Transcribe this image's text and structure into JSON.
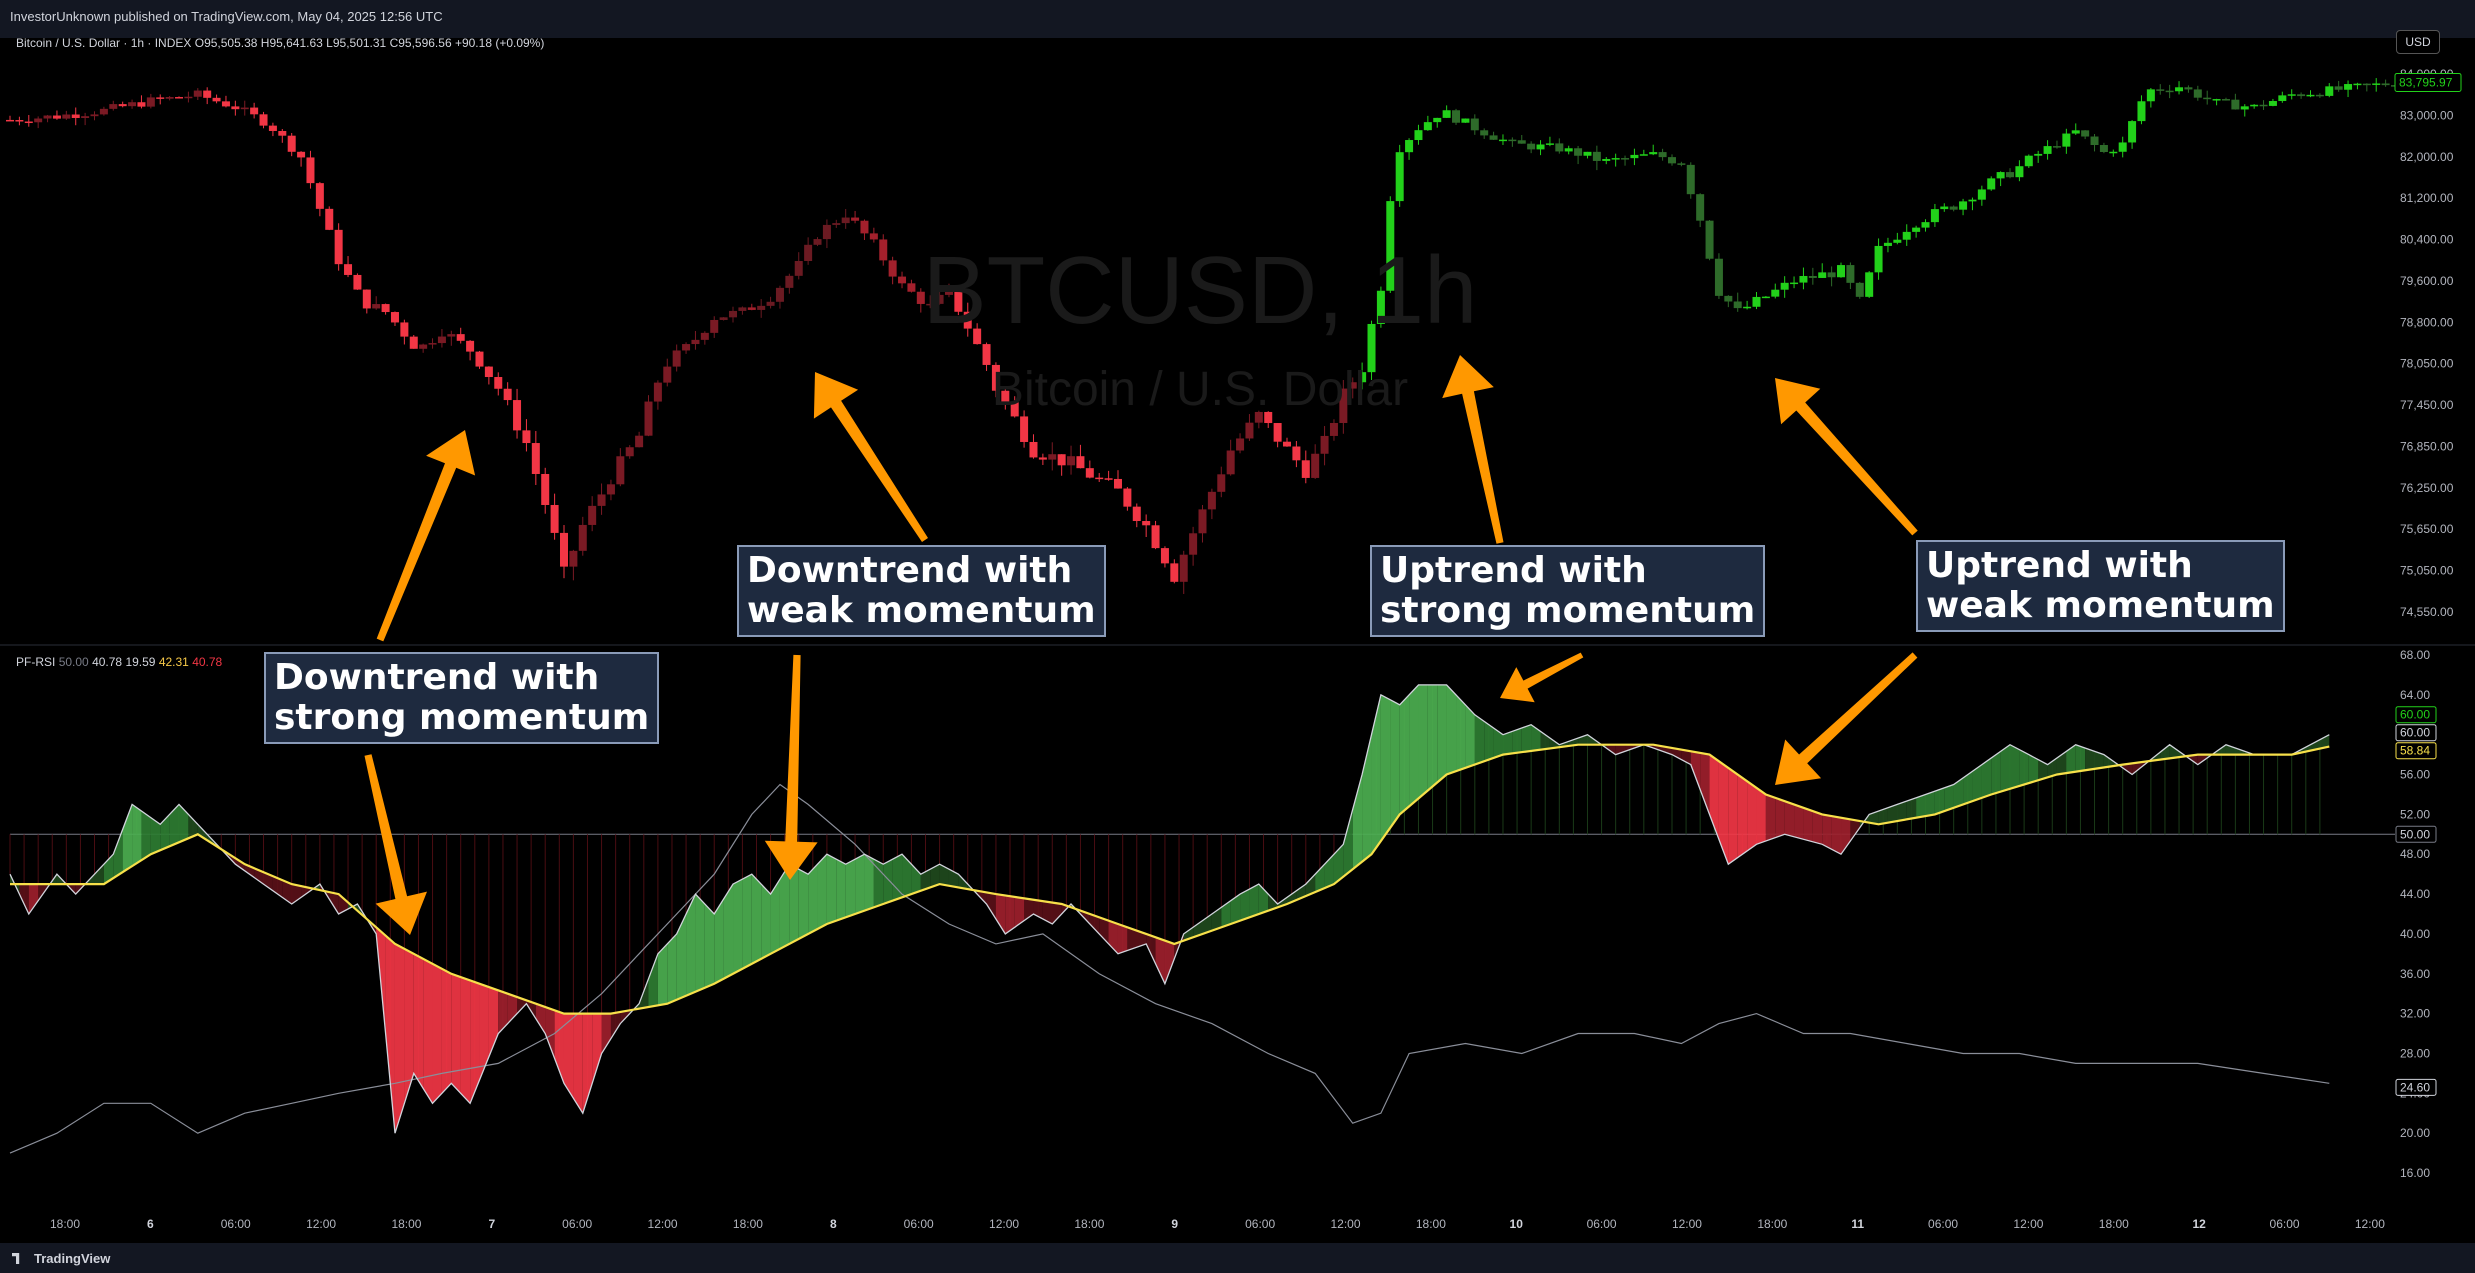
{
  "header": {
    "published": "InvestorUnknown published on TradingView.com, May 04, 2025 12:56 UTC",
    "symbol_line": "Bitcoin / U.S. Dollar · 1h · INDEX",
    "ohlc": "O95,505.38  H95,641.63  L95,501.31  C95,596.56  +90.18 (+0.09%)",
    "currency_button": "USD"
  },
  "watermark": {
    "title": "BTCUSD, 1h",
    "subtitle": "Bitcoin / U.S. Dollar"
  },
  "indicator_legend": {
    "name": "PF-RSI",
    "values": [
      {
        "text": "50.00",
        "color": "#787b86"
      },
      {
        "text": "40.78",
        "color": "#d1d4dc"
      },
      {
        "text": "19.59",
        "color": "#d1d4dc"
      },
      {
        "text": "42.31",
        "color": "#f7c948"
      },
      {
        "text": "40.78",
        "color": "#f23645"
      }
    ]
  },
  "annotations": [
    {
      "text": "Downtrend with\nstrong momentum"
    },
    {
      "text": "Downtrend with\nweak momentum"
    },
    {
      "text": "Uptrend with\nstrong momentum"
    },
    {
      "text": "Uptrend with\nweak momentum"
    }
  ],
  "footer": {
    "brand": "TradingView"
  },
  "colors": {
    "bear_strong": "#f23645",
    "bear_weak": "#7a1a24",
    "bull_strong": "#22d11a",
    "bull_weak": "#2e6b2a",
    "rsi_line": "#d1d4dc",
    "signal_line": "#f7e04a",
    "arrow": "#ff9800"
  },
  "chart_data": [
    {
      "type": "candlestick",
      "y_ticks": [
        "84,000.00",
        "83,000.00",
        "82,000.00",
        "81,200.00",
        "80,400.00",
        "79,600.00",
        "78,800.00",
        "78,050.00",
        "77,450.00",
        "76,850.00",
        "76,250.00",
        "75,650.00",
        "75,050.00",
        "74,550.00"
      ],
      "last_price": "83,795.97",
      "x_ticks": [
        "18:00",
        "6",
        "06:00",
        "12:00",
        "18:00",
        "7",
        "06:00",
        "12:00",
        "18:00",
        "8",
        "06:00",
        "12:00",
        "18:00",
        "9",
        "06:00",
        "12:00",
        "18:00",
        "10",
        "06:00",
        "12:00",
        "18:00",
        "11",
        "06:00",
        "12:00",
        "18:00",
        "12",
        "06:00",
        "12:00"
      ],
      "close_path": [
        [
          0,
          82890
        ],
        [
          10,
          82980
        ],
        [
          20,
          83120
        ],
        [
          30,
          83350
        ],
        [
          40,
          83500
        ],
        [
          48,
          83200
        ],
        [
          55,
          82800
        ],
        [
          62,
          82000
        ],
        [
          66,
          81000
        ],
        [
          70,
          80000
        ],
        [
          75,
          79200
        ],
        [
          80,
          79000
        ],
        [
          87,
          78300
        ],
        [
          92,
          78650
        ],
        [
          98,
          78300
        ],
        [
          104,
          77700
        ],
        [
          110,
          76900
        ],
        [
          115,
          75800
        ],
        [
          118,
          75000
        ],
        [
          122,
          75700
        ],
        [
          128,
          76400
        ],
        [
          134,
          77000
        ],
        [
          139,
          78000
        ],
        [
          145,
          78400
        ],
        [
          150,
          78900
        ],
        [
          156,
          79000
        ],
        [
          162,
          79300
        ],
        [
          168,
          79900
        ],
        [
          172,
          80500
        ],
        [
          178,
          80900
        ],
        [
          184,
          80300
        ],
        [
          190,
          79500
        ],
        [
          196,
          79100
        ],
        [
          200,
          79400
        ],
        [
          210,
          77700
        ],
        [
          218,
          76800
        ],
        [
          226,
          76600
        ],
        [
          236,
          76200
        ],
        [
          242,
          75700
        ],
        [
          248,
          75000
        ],
        [
          254,
          75900
        ],
        [
          260,
          76800
        ],
        [
          266,
          77300
        ],
        [
          272,
          76800
        ],
        [
          276,
          76500
        ],
        [
          280,
          76900
        ],
        [
          284,
          77600
        ],
        [
          288,
          78000
        ],
        [
          292,
          79500
        ],
        [
          295,
          82100
        ],
        [
          300,
          82700
        ],
        [
          305,
          83100
        ],
        [
          312,
          82700
        ],
        [
          320,
          82300
        ],
        [
          330,
          82200
        ],
        [
          340,
          81900
        ],
        [
          350,
          82050
        ],
        [
          356,
          81900
        ],
        [
          360,
          80800
        ],
        [
          364,
          79400
        ],
        [
          368,
          79000
        ],
        [
          374,
          79300
        ],
        [
          380,
          79600
        ],
        [
          390,
          79800
        ],
        [
          394,
          79200
        ],
        [
          398,
          80200
        ],
        [
          405,
          80700
        ],
        [
          415,
          81100
        ],
        [
          420,
          81400
        ],
        [
          428,
          81800
        ],
        [
          434,
          82200
        ],
        [
          440,
          82600
        ],
        [
          446,
          82100
        ],
        [
          450,
          82300
        ],
        [
          455,
          83600
        ],
        [
          462,
          83700
        ],
        [
          470,
          83300
        ],
        [
          478,
          83200
        ],
        [
          486,
          83500
        ],
        [
          494,
          83600
        ],
        [
          502,
          83700
        ],
        [
          508,
          83796
        ]
      ]
    },
    {
      "type": "line",
      "y_ticks": [
        "68.00",
        "64.00",
        "60.00",
        "56.00",
        "52.00",
        "48.00",
        "44.00",
        "40.00",
        "36.00",
        "32.00",
        "28.00",
        "24.00",
        "20.00",
        "16.00"
      ],
      "labels": [
        {
          "text": "60.00",
          "bg": "#000",
          "border": "#22d11a"
        },
        {
          "text": "60.00",
          "bg": "#000",
          "border": "#d1d4dc"
        },
        {
          "text": "58.84",
          "bg": "#000",
          "border": "#f7e04a"
        },
        {
          "text": "50.00",
          "bg": "#000",
          "border": "#787b86"
        },
        {
          "text": "24.60",
          "bg": "#000",
          "border": "#d1d4dc"
        }
      ],
      "midline": 50,
      "series": [
        {
          "values": [
            [
              0,
              46
            ],
            [
              4,
              42
            ],
            [
              10,
              46
            ],
            [
              14,
              44
            ],
            [
              18,
              46
            ],
            [
              22,
              48
            ],
            [
              26,
              53
            ],
            [
              32,
              51
            ],
            [
              36,
              53
            ],
            [
              42,
              50
            ],
            [
              48,
              47
            ],
            [
              54,
              45
            ],
            [
              60,
              43
            ],
            [
              66,
              45
            ],
            [
              70,
              42
            ],
            [
              74,
              43
            ],
            [
              78,
              40
            ],
            [
              82,
              20
            ],
            [
              86,
              26
            ],
            [
              90,
              23
            ],
            [
              94,
              25
            ],
            [
              98,
              23
            ],
            [
              104,
              30
            ],
            [
              110,
              33
            ],
            [
              114,
              30
            ],
            [
              118,
              25
            ],
            [
              122,
              22
            ],
            [
              126,
              28
            ],
            [
              130,
              31
            ],
            [
              134,
              33
            ],
            [
              138,
              38
            ],
            [
              142,
              40
            ],
            [
              146,
              44
            ],
            [
              150,
              42
            ],
            [
              154,
              45
            ],
            [
              158,
              46
            ],
            [
              162,
              44
            ],
            [
              166,
              47
            ],
            [
              170,
              46
            ],
            [
              174,
              48
            ],
            [
              178,
              47
            ],
            [
              182,
              48
            ],
            [
              186,
              47
            ],
            [
              190,
              48
            ],
            [
              194,
              46
            ],
            [
              198,
              47
            ],
            [
              202,
              46
            ],
            [
              208,
              43
            ],
            [
              212,
              40
            ],
            [
              218,
              42
            ],
            [
              222,
              41
            ],
            [
              226,
              43
            ],
            [
              232,
              40
            ],
            [
              236,
              38
            ],
            [
              242,
              39
            ],
            [
              246,
              35
            ],
            [
              250,
              40
            ],
            [
              256,
              42
            ],
            [
              262,
              44
            ],
            [
              266,
              45
            ],
            [
              270,
              43
            ],
            [
              276,
              45
            ],
            [
              280,
              47
            ],
            [
              284,
              49
            ],
            [
              288,
              56
            ],
            [
              292,
              64
            ],
            [
              296,
              63
            ],
            [
              300,
              65
            ],
            [
              306,
              65
            ],
            [
              312,
              62
            ],
            [
              318,
              60
            ],
            [
              324,
              61
            ],
            [
              330,
              59
            ],
            [
              336,
              60
            ],
            [
              342,
              58
            ],
            [
              348,
              59
            ],
            [
              354,
              58
            ],
            [
              358,
              57
            ],
            [
              362,
              52
            ],
            [
              366,
              47
            ],
            [
              372,
              49
            ],
            [
              378,
              50
            ],
            [
              386,
              49
            ],
            [
              390,
              48
            ],
            [
              396,
              52
            ],
            [
              402,
              53
            ],
            [
              408,
              54
            ],
            [
              414,
              55
            ],
            [
              420,
              57
            ],
            [
              426,
              59
            ],
            [
              430,
              58
            ],
            [
              434,
              57
            ],
            [
              440,
              59
            ],
            [
              446,
              58
            ],
            [
              452,
              56
            ],
            [
              460,
              59
            ],
            [
              466,
              57
            ],
            [
              472,
              59
            ],
            [
              478,
              58
            ],
            [
              486,
              58
            ],
            [
              494,
              60
            ]
          ]
        },
        {
          "values": [
            [
              0,
              45
            ],
            [
              20,
              45
            ],
            [
              30,
              48
            ],
            [
              40,
              50
            ],
            [
              50,
              47
            ],
            [
              60,
              45
            ],
            [
              70,
              44
            ],
            [
              82,
              39
            ],
            [
              94,
              36
            ],
            [
              106,
              34
            ],
            [
              118,
              32
            ],
            [
              128,
              32
            ],
            [
              140,
              33
            ],
            [
              150,
              35
            ],
            [
              162,
              38
            ],
            [
              174,
              41
            ],
            [
              186,
              43
            ],
            [
              198,
              45
            ],
            [
              210,
              44
            ],
            [
              224,
              43
            ],
            [
              236,
              41
            ],
            [
              248,
              39
            ],
            [
              260,
              41
            ],
            [
              272,
              43
            ],
            [
              282,
              45
            ],
            [
              290,
              48
            ],
            [
              296,
              52
            ],
            [
              306,
              56
            ],
            [
              318,
              58
            ],
            [
              334,
              59
            ],
            [
              350,
              59
            ],
            [
              362,
              58
            ],
            [
              374,
              54
            ],
            [
              386,
              52
            ],
            [
              398,
              51
            ],
            [
              410,
              52
            ],
            [
              422,
              54
            ],
            [
              436,
              56
            ],
            [
              450,
              57
            ],
            [
              466,
              58
            ],
            [
              486,
              58
            ],
            [
              494,
              58.8
            ]
          ]
        },
        {
          "values": [
            [
              0,
              18
            ],
            [
              10,
              20
            ],
            [
              20,
              23
            ],
            [
              30,
              23
            ],
            [
              40,
              20
            ],
            [
              50,
              22
            ],
            [
              60,
              23
            ],
            [
              70,
              24
            ],
            [
              82,
              25
            ],
            [
              92,
              26
            ],
            [
              104,
              27
            ],
            [
              116,
              30
            ],
            [
              126,
              34
            ],
            [
              134,
              38
            ],
            [
              142,
              42
            ],
            [
              150,
              46
            ],
            [
              158,
              52
            ],
            [
              164,
              55
            ],
            [
              170,
              53
            ],
            [
              180,
              49
            ],
            [
              190,
              44
            ],
            [
              200,
              41
            ],
            [
              210,
              39
            ],
            [
              220,
              40
            ],
            [
              232,
              36
            ],
            [
              244,
              33
            ],
            [
              256,
              31
            ],
            [
              268,
              28
            ],
            [
              278,
              26
            ],
            [
              286,
              21
            ],
            [
              292,
              22
            ],
            [
              298,
              28
            ],
            [
              310,
              29
            ],
            [
              322,
              28
            ],
            [
              334,
              30
            ],
            [
              346,
              30
            ],
            [
              356,
              29
            ],
            [
              364,
              31
            ],
            [
              372,
              32
            ],
            [
              382,
              30
            ],
            [
              392,
              30
            ],
            [
              404,
              29
            ],
            [
              416,
              28
            ],
            [
              428,
              28
            ],
            [
              440,
              27
            ],
            [
              452,
              27
            ],
            [
              466,
              27
            ],
            [
              480,
              26
            ],
            [
              494,
              25
            ]
          ]
        }
      ]
    }
  ]
}
